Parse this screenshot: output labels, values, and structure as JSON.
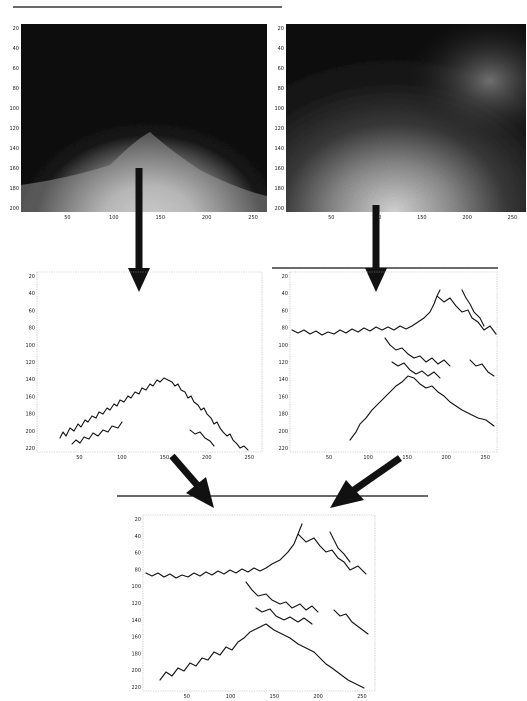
{
  "panels": {
    "photo_left": {
      "y_ticks": [
        "20",
        "40",
        "60",
        "80",
        "100",
        "120",
        "140",
        "160",
        "180",
        "200"
      ],
      "x_ticks": [
        "50",
        "100",
        "150",
        "200",
        "250"
      ]
    },
    "photo_right": {
      "y_ticks": [
        "20",
        "40",
        "60",
        "80",
        "100",
        "120",
        "140",
        "160",
        "180",
        "200"
      ],
      "x_ticks": [
        "50",
        "100",
        "150",
        "200",
        "250"
      ]
    },
    "edges_left": {
      "y_ticks": [
        "20",
        "40",
        "60",
        "80",
        "100",
        "120",
        "140",
        "160",
        "180",
        "200",
        "220"
      ],
      "x_ticks": [
        "50",
        "100",
        "150",
        "200",
        "250"
      ]
    },
    "edges_right": {
      "y_ticks": [
        "20",
        "40",
        "60",
        "80",
        "100",
        "120",
        "140",
        "160",
        "180",
        "200",
        "220"
      ],
      "x_ticks": [
        "50",
        "100",
        "150",
        "200",
        "250"
      ]
    },
    "edges_combined": {
      "y_ticks": [
        "20",
        "40",
        "60",
        "80",
        "100",
        "120",
        "140",
        "160",
        "180",
        "200",
        "220"
      ],
      "x_ticks": [
        "50",
        "100",
        "150",
        "200",
        "250"
      ]
    }
  },
  "colors": {
    "arrow": "#111111",
    "photo_dark": "#0b0b0b",
    "photo_light": "#e6e6e6"
  }
}
